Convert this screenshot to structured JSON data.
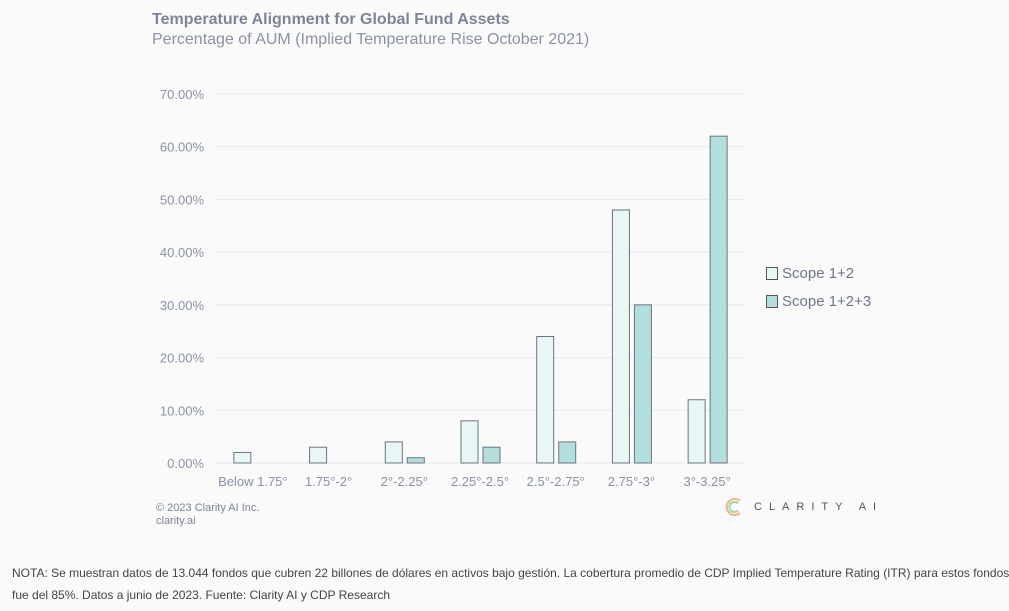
{
  "chart_data": {
    "type": "bar",
    "title": "Temperature Alignment for Global Fund Assets",
    "subtitle": "Percentage of AUM (Implied Temperature Rise October 2021)",
    "categories": [
      "Below 1.75°",
      "1.75°-2°",
      "2°-2.25°",
      "2.25°-2.5°",
      "2.5°-2.75°",
      "2.75°-3°",
      "3°-3.25°"
    ],
    "series": [
      {
        "name": "Scope 1+2",
        "values": [
          2,
          3,
          4,
          8,
          24,
          48,
          12
        ],
        "color": "#e8f6f6"
      },
      {
        "name": "Scope 1+2+3",
        "values": [
          0,
          0,
          1,
          3,
          4,
          30,
          62
        ],
        "color": "#b2dfdc"
      }
    ],
    "yticks": [
      "0.00%",
      "10.00%",
      "20.00%",
      "30.00%",
      "40.00%",
      "50.00%",
      "60.00%",
      "70.00%"
    ],
    "ylim": [
      0,
      70
    ],
    "grid": true,
    "legend": "right"
  },
  "footer": {
    "copyright": "© 2023 Clarity AI Inc.",
    "site": "clarity.ai",
    "logo": "CLARITY AI"
  },
  "note": "NOTA: Se muestran datos de 13.044 fondos que cubren 22 billones de dólares en activos bajo gestión. La cobertura promedio de CDP Implied Temperature Rating (ITR) para estos fondos fue del 85%. Datos a junio de 2023. Fuente: Clarity AI y CDP Research"
}
